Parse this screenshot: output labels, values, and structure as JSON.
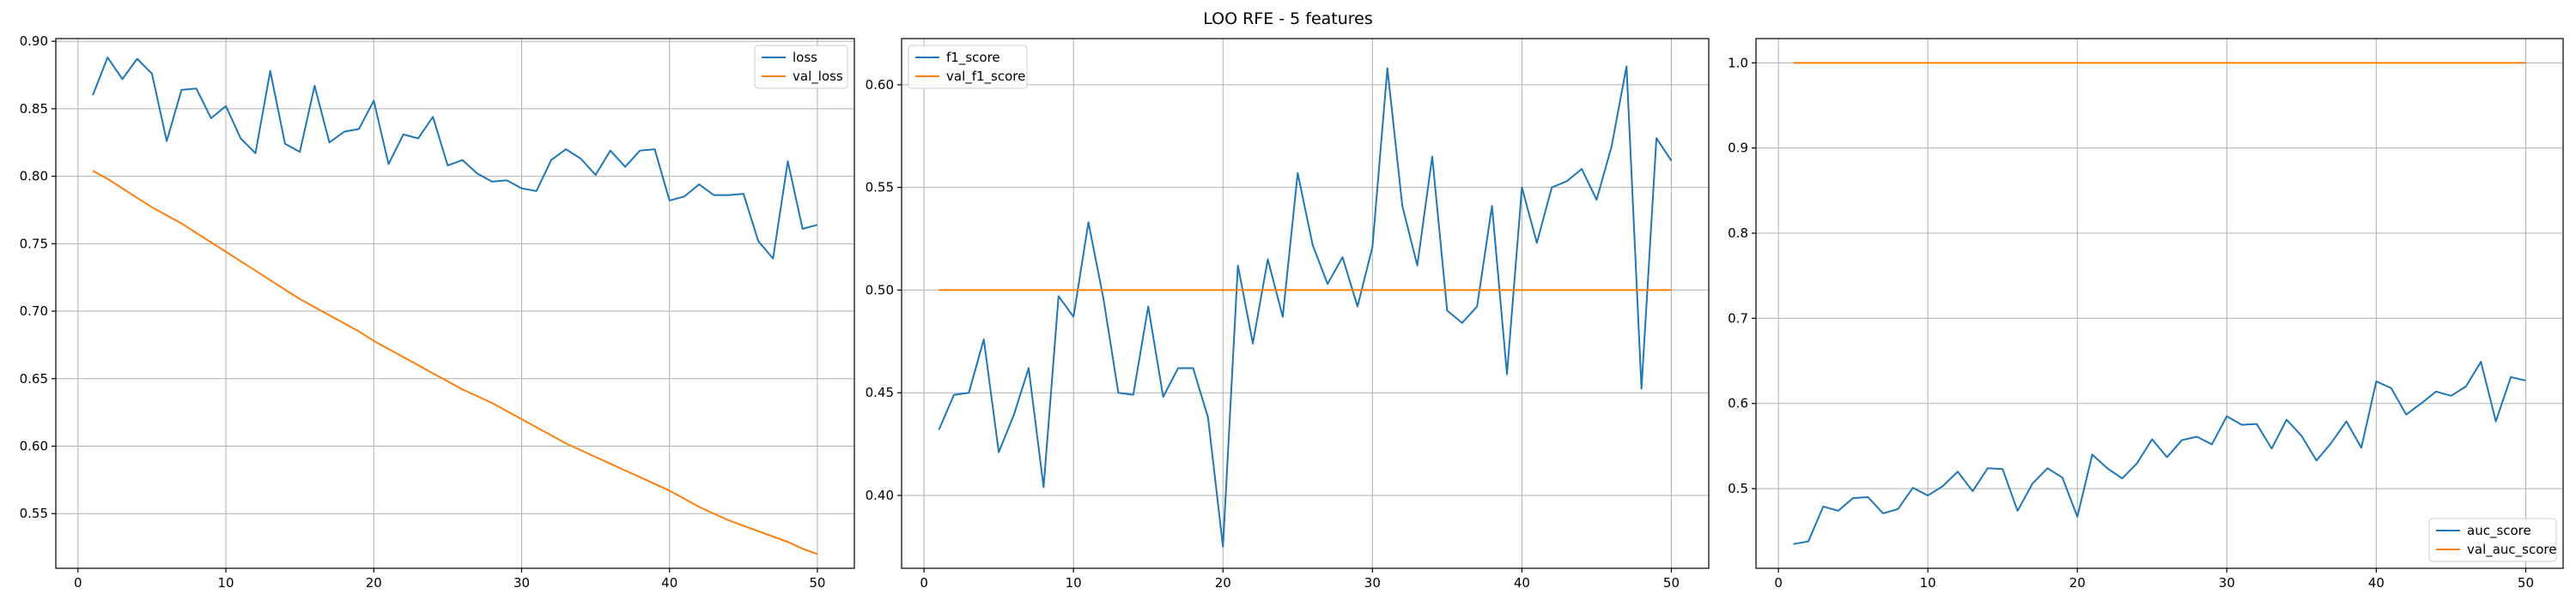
{
  "figure": {
    "title": "LOO RFE - 5 features"
  },
  "colors": {
    "series_0": "#1f77b4",
    "series_1": "#ff7f0e",
    "grid": "#b0b0b0"
  },
  "chart_data": [
    {
      "type": "line",
      "grid": true,
      "xlim": [
        -1.5,
        52.5
      ],
      "ylim": [
        0.5095,
        0.902
      ],
      "xticks": [
        0,
        10,
        20,
        30,
        40,
        50
      ],
      "yticks": [
        0.55,
        0.6,
        0.65,
        0.7,
        0.75,
        0.8,
        0.85,
        0.9
      ],
      "ytick_labels": [
        "0.55",
        "0.60",
        "0.65",
        "0.70",
        "0.75",
        "0.80",
        "0.85",
        "0.90"
      ],
      "legend_position": "upper right",
      "x": [
        1,
        2,
        3,
        4,
        5,
        6,
        7,
        8,
        9,
        10,
        11,
        12,
        13,
        14,
        15,
        16,
        17,
        18,
        19,
        20,
        21,
        22,
        23,
        24,
        25,
        26,
        27,
        28,
        29,
        30,
        31,
        32,
        33,
        34,
        35,
        36,
        37,
        38,
        39,
        40,
        41,
        42,
        43,
        44,
        45,
        46,
        47,
        48,
        49,
        50
      ],
      "series": [
        {
          "name": "loss",
          "color": "#1f77b4",
          "values": [
            0.86,
            0.888,
            0.872,
            0.887,
            0.876,
            0.826,
            0.864,
            0.865,
            0.843,
            0.852,
            0.828,
            0.817,
            0.878,
            0.824,
            0.818,
            0.867,
            0.825,
            0.833,
            0.835,
            0.856,
            0.809,
            0.831,
            0.828,
            0.844,
            0.808,
            0.812,
            0.802,
            0.796,
            0.797,
            0.791,
            0.789,
            0.812,
            0.82,
            0.813,
            0.801,
            0.819,
            0.807,
            0.819,
            0.82,
            0.782,
            0.785,
            0.794,
            0.786,
            0.786,
            0.787,
            0.752,
            0.739,
            0.811,
            0.761,
            0.764
          ]
        },
        {
          "name": "val_loss",
          "color": "#ff7f0e",
          "values": [
            0.804,
            0.798,
            0.791,
            0.784,
            0.777,
            0.771,
            0.765,
            0.758,
            0.751,
            0.744,
            0.737,
            0.73,
            0.723,
            0.716,
            0.709,
            0.703,
            0.697,
            0.691,
            0.685,
            0.678,
            0.672,
            0.666,
            0.66,
            0.654,
            0.648,
            0.642,
            0.637,
            0.632,
            0.626,
            0.62,
            0.614,
            0.608,
            0.602,
            0.597,
            0.592,
            0.587,
            0.582,
            0.577,
            0.572,
            0.567,
            0.561,
            0.555,
            0.55,
            0.545,
            0.541,
            0.537,
            0.533,
            0.529,
            0.524,
            0.52
          ]
        }
      ]
    },
    {
      "type": "line",
      "grid": true,
      "xlim": [
        -1.5,
        52.5
      ],
      "ylim": [
        0.3645,
        0.6225
      ],
      "xticks": [
        0,
        10,
        20,
        30,
        40,
        50
      ],
      "yticks": [
        0.4,
        0.45,
        0.5,
        0.55,
        0.6
      ],
      "ytick_labels": [
        "0.40",
        "0.45",
        "0.50",
        "0.55",
        "0.60"
      ],
      "legend_position": "upper left",
      "x": [
        1,
        2,
        3,
        4,
        5,
        6,
        7,
        8,
        9,
        10,
        11,
        12,
        13,
        14,
        15,
        16,
        17,
        18,
        19,
        20,
        21,
        22,
        23,
        24,
        25,
        26,
        27,
        28,
        29,
        30,
        31,
        32,
        33,
        34,
        35,
        36,
        37,
        38,
        39,
        40,
        41,
        42,
        43,
        44,
        45,
        46,
        47,
        48,
        49,
        50
      ],
      "series": [
        {
          "name": "f1_score",
          "color": "#1f77b4",
          "values": [
            0.432,
            0.449,
            0.45,
            0.476,
            0.421,
            0.439,
            0.462,
            0.404,
            0.497,
            0.487,
            0.533,
            0.496,
            0.45,
            0.449,
            0.492,
            0.448,
            0.462,
            0.462,
            0.438,
            0.375,
            0.512,
            0.474,
            0.515,
            0.487,
            0.557,
            0.522,
            0.503,
            0.516,
            0.492,
            0.521,
            0.608,
            0.541,
            0.512,
            0.565,
            0.49,
            0.484,
            0.492,
            0.541,
            0.459,
            0.55,
            0.523,
            0.55,
            0.553,
            0.559,
            0.544,
            0.57,
            0.609,
            0.452,
            0.574,
            0.563
          ]
        },
        {
          "name": "val_f1_score",
          "color": "#ff7f0e",
          "values": [
            0.5,
            0.5,
            0.5,
            0.5,
            0.5,
            0.5,
            0.5,
            0.5,
            0.5,
            0.5,
            0.5,
            0.5,
            0.5,
            0.5,
            0.5,
            0.5,
            0.5,
            0.5,
            0.5,
            0.5,
            0.5,
            0.5,
            0.5,
            0.5,
            0.5,
            0.5,
            0.5,
            0.5,
            0.5,
            0.5,
            0.5,
            0.5,
            0.5,
            0.5,
            0.5,
            0.5,
            0.5,
            0.5,
            0.5,
            0.5,
            0.5,
            0.5,
            0.5,
            0.5,
            0.5,
            0.5,
            0.5,
            0.5,
            0.5,
            0.5
          ]
        }
      ]
    },
    {
      "type": "line",
      "grid": true,
      "xlim": [
        -1.5,
        52.5
      ],
      "ylim": [
        0.4065,
        1.0285
      ],
      "xticks": [
        0,
        10,
        20,
        30,
        40,
        50
      ],
      "yticks": [
        0.5,
        0.6,
        0.7,
        0.8,
        0.9,
        1.0
      ],
      "ytick_labels": [
        "0.5",
        "0.6",
        "0.7",
        "0.8",
        "0.9",
        "1.0"
      ],
      "legend_position": "lower right",
      "x": [
        1,
        2,
        3,
        4,
        5,
        6,
        7,
        8,
        9,
        10,
        11,
        12,
        13,
        14,
        15,
        16,
        17,
        18,
        19,
        20,
        21,
        22,
        23,
        24,
        25,
        26,
        27,
        28,
        29,
        30,
        31,
        32,
        33,
        34,
        35,
        36,
        37,
        38,
        39,
        40,
        41,
        42,
        43,
        44,
        45,
        46,
        47,
        48,
        49,
        50
      ],
      "series": [
        {
          "name": "auc_score",
          "color": "#1f77b4",
          "values": [
            0.435,
            0.438,
            0.479,
            0.474,
            0.489,
            0.49,
            0.471,
            0.476,
            0.501,
            0.492,
            0.503,
            0.52,
            0.497,
            0.524,
            0.523,
            0.474,
            0.506,
            0.524,
            0.513,
            0.467,
            0.54,
            0.524,
            0.512,
            0.53,
            0.558,
            0.537,
            0.557,
            0.561,
            0.552,
            0.585,
            0.575,
            0.576,
            0.547,
            0.581,
            0.562,
            0.533,
            0.554,
            0.579,
            0.548,
            0.626,
            0.618,
            0.587,
            0.6,
            0.614,
            0.609,
            0.62,
            0.649,
            0.579,
            0.631,
            0.627
          ]
        },
        {
          "name": "val_auc_score",
          "color": "#ff7f0e",
          "values": [
            1.0,
            1.0,
            1.0,
            1.0,
            1.0,
            1.0,
            1.0,
            1.0,
            1.0,
            1.0,
            1.0,
            1.0,
            1.0,
            1.0,
            1.0,
            1.0,
            1.0,
            1.0,
            1.0,
            1.0,
            1.0,
            1.0,
            1.0,
            1.0,
            1.0,
            1.0,
            1.0,
            1.0,
            1.0,
            1.0,
            1.0,
            1.0,
            1.0,
            1.0,
            1.0,
            1.0,
            1.0,
            1.0,
            1.0,
            1.0,
            1.0,
            1.0,
            1.0,
            1.0,
            1.0,
            1.0,
            1.0,
            1.0,
            1.0,
            1.0
          ]
        }
      ]
    }
  ]
}
